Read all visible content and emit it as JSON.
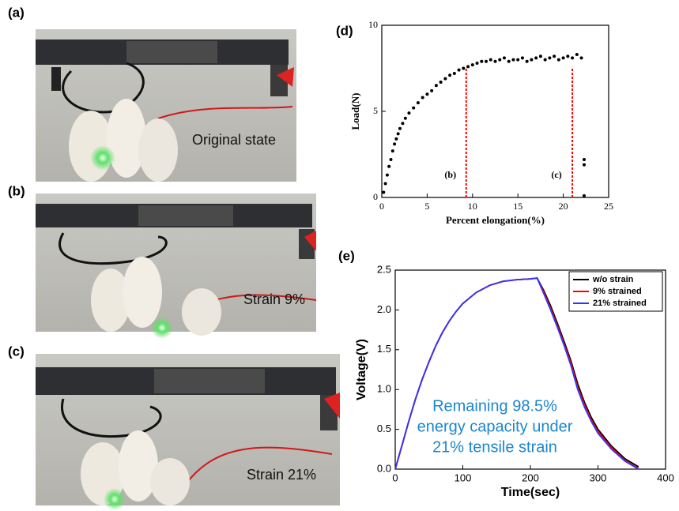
{
  "photos": [
    {
      "label": "(a)",
      "caption": "Original state"
    },
    {
      "label": "(b)",
      "caption": "Strain 9%"
    },
    {
      "label": "(c)",
      "caption": "Strain 21%"
    }
  ],
  "chart_data": [
    {
      "type": "scatter",
      "panel": "(d)",
      "xlabel": "Percent elongation(%)",
      "ylabel": "Load(N)",
      "xlim": [
        0,
        25
      ],
      "ylim": [
        0,
        10
      ],
      "xticks": [
        0,
        5,
        10,
        15,
        20,
        25
      ],
      "yticks": [
        0,
        5,
        10
      ],
      "color": "#000000",
      "x": [
        0.2,
        0.4,
        0.6,
        0.8,
        1.0,
        1.2,
        1.4,
        1.6,
        1.8,
        2.0,
        2.3,
        2.6,
        3.0,
        3.5,
        4.0,
        4.5,
        5.0,
        5.5,
        6.0,
        6.5,
        7.0,
        7.5,
        8.0,
        8.5,
        9.0,
        9.5,
        10.0,
        10.5,
        11.0,
        11.5,
        12.0,
        12.5,
        13.0,
        13.5,
        14.0,
        14.5,
        15.0,
        15.5,
        16.0,
        16.5,
        17.0,
        17.5,
        18.0,
        18.5,
        19.0,
        19.5,
        20.0,
        20.5,
        21.0,
        21.5,
        22.0,
        22.3,
        22.3,
        22.3
      ],
      "values": [
        0.3,
        0.8,
        1.3,
        1.8,
        2.2,
        2.7,
        3.1,
        3.4,
        3.7,
        4.0,
        4.3,
        4.6,
        4.9,
        5.2,
        5.5,
        5.8,
        6.0,
        6.2,
        6.5,
        6.7,
        6.9,
        7.1,
        7.2,
        7.4,
        7.5,
        7.6,
        7.7,
        7.8,
        7.9,
        7.9,
        8.0,
        7.9,
        8.0,
        8.1,
        7.9,
        8.0,
        8.0,
        8.1,
        7.9,
        8.0,
        8.1,
        8.2,
        8.0,
        8.1,
        8.2,
        8.0,
        8.1,
        8.2,
        8.1,
        8.3,
        8.1,
        2.2,
        1.9,
        0.1
      ],
      "markers": [
        {
          "x": 9.3,
          "label": "(b)"
        },
        {
          "x": 21,
          "label": "(c)"
        }
      ],
      "marker_color": "#ff0000"
    },
    {
      "type": "line",
      "panel": "(e)",
      "xlabel": "Time(sec)",
      "ylabel": "Voltage(V)",
      "xlim": [
        0,
        400
      ],
      "ylim": [
        0,
        2.5
      ],
      "xticks": [
        0,
        100,
        200,
        300,
        400
      ],
      "yticks": [
        {
          "value": 0,
          "label": "0.0"
        },
        0.5,
        {
          "value": 1,
          "label": "1.0"
        },
        1.5,
        {
          "value": 2,
          "label": "2.0"
        },
        2.5
      ],
      "x": [
        0,
        10,
        20,
        30,
        40,
        50,
        60,
        70,
        80,
        90,
        100,
        120,
        140,
        160,
        180,
        200,
        210,
        220,
        230,
        240,
        250,
        260,
        270,
        280,
        290,
        300,
        320,
        340,
        360
      ],
      "series": [
        {
          "name": "w/o strain",
          "color": "#000000",
          "values": [
            0,
            0.3,
            0.6,
            0.88,
            1.13,
            1.35,
            1.55,
            1.72,
            1.86,
            1.98,
            2.08,
            2.22,
            2.31,
            2.36,
            2.38,
            2.39,
            2.4,
            2.24,
            2.05,
            1.83,
            1.6,
            1.36,
            1.07,
            0.84,
            0.65,
            0.5,
            0.29,
            0.13,
            0.03
          ]
        },
        {
          "name": "9% strained",
          "color": "#ff0000",
          "values": [
            0,
            0.3,
            0.6,
            0.88,
            1.13,
            1.35,
            1.55,
            1.72,
            1.86,
            1.98,
            2.08,
            2.22,
            2.31,
            2.36,
            2.38,
            2.39,
            2.4,
            2.22,
            2.02,
            1.8,
            1.57,
            1.33,
            1.03,
            0.81,
            0.62,
            0.47,
            0.27,
            0.11,
            0.01
          ]
        },
        {
          "name": "21% strained",
          "color": "#3333ff",
          "values": [
            0,
            0.3,
            0.6,
            0.88,
            1.13,
            1.35,
            1.55,
            1.72,
            1.86,
            1.98,
            2.08,
            2.22,
            2.31,
            2.36,
            2.38,
            2.39,
            2.4,
            2.2,
            2.0,
            1.78,
            1.55,
            1.3,
            1.0,
            0.78,
            0.6,
            0.45,
            0.25,
            0.1,
            0
          ]
        }
      ],
      "annotation": [
        "Remaining 98.5%",
        "energy capacity under",
        "21% tensile strain"
      ],
      "annotation_color": "#1a86d0"
    }
  ]
}
